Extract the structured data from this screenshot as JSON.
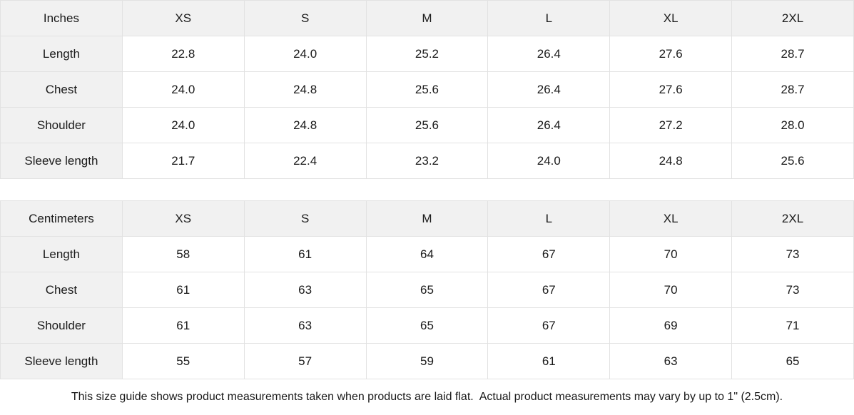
{
  "tables": [
    {
      "unit_label": "Inches",
      "sizes": [
        "XS",
        "S",
        "M",
        "L",
        "XL",
        "2XL"
      ],
      "rows": [
        {
          "label": "Length",
          "values": [
            "22.8",
            "24.0",
            "25.2",
            "26.4",
            "27.6",
            "28.7"
          ]
        },
        {
          "label": "Chest",
          "values": [
            "24.0",
            "24.8",
            "25.6",
            "26.4",
            "27.6",
            "28.7"
          ]
        },
        {
          "label": "Shoulder",
          "values": [
            "24.0",
            "24.8",
            "25.6",
            "26.4",
            "27.2",
            "28.0"
          ]
        },
        {
          "label": "Sleeve length",
          "values": [
            "21.7",
            "22.4",
            "23.2",
            "24.0",
            "24.8",
            "25.6"
          ]
        }
      ]
    },
    {
      "unit_label": "Centimeters",
      "sizes": [
        "XS",
        "S",
        "M",
        "L",
        "XL",
        "2XL"
      ],
      "rows": [
        {
          "label": "Length",
          "values": [
            "58",
            "61",
            "64",
            "67",
            "70",
            "73"
          ]
        },
        {
          "label": "Chest",
          "values": [
            "61",
            "63",
            "65",
            "67",
            "70",
            "73"
          ]
        },
        {
          "label": "Shoulder",
          "values": [
            "61",
            "63",
            "65",
            "67",
            "69",
            "71"
          ]
        },
        {
          "label": "Sleeve length",
          "values": [
            "55",
            "57",
            "59",
            "61",
            "63",
            "65"
          ]
        }
      ]
    }
  ],
  "footer": {
    "note": "This size guide shows product measurements taken when products are laid flat.  Actual product measurements may vary by up to 1\" (2.5cm)."
  },
  "colors": {
    "shaded_cell_bg": "#f1f1f1",
    "cell_border": "#e2e2e2",
    "text": "#1a1a1a",
    "background": "#ffffff"
  }
}
